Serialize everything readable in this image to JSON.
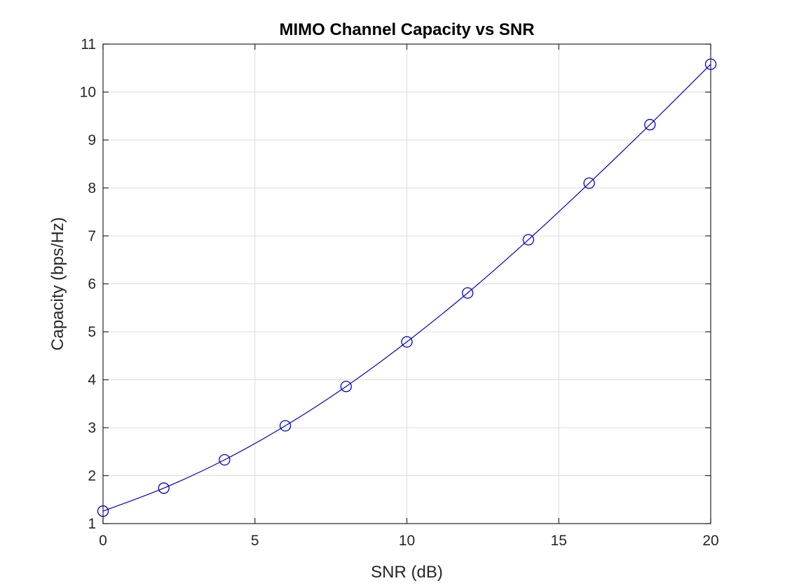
{
  "chart_data": {
    "type": "line",
    "title": "MIMO Channel Capacity vs SNR",
    "xlabel": "SNR (dB)",
    "ylabel": "Capacity (bps/Hz)",
    "xlim": [
      0,
      20
    ],
    "ylim": [
      1,
      11
    ],
    "xticks": [
      0,
      5,
      10,
      15,
      20
    ],
    "yticks": [
      1,
      2,
      3,
      4,
      5,
      6,
      7,
      8,
      9,
      10,
      11
    ],
    "grid": true,
    "legend": "none",
    "series": [
      {
        "color": "#0000cc",
        "marker": "circle",
        "x": [
          0,
          2,
          4,
          6,
          8,
          10,
          12,
          14,
          16,
          18,
          20
        ],
        "y": [
          1.26,
          1.74,
          2.33,
          3.04,
          3.86,
          4.79,
          5.81,
          6.92,
          8.1,
          9.32,
          10.58
        ]
      }
    ]
  }
}
